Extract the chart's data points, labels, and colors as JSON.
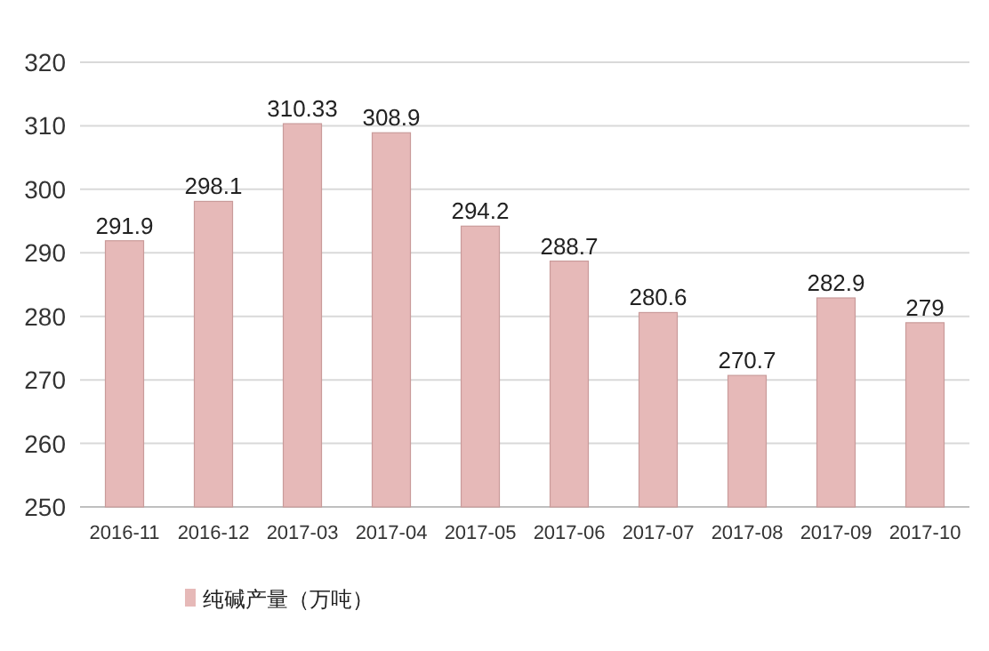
{
  "chart_data": {
    "type": "bar",
    "categories": [
      "2016-11",
      "2016-12",
      "2017-03",
      "2017-04",
      "2017-05",
      "2017-06",
      "2017-07",
      "2017-08",
      "2017-09",
      "2017-10"
    ],
    "series": [
      {
        "name": "纯碱产量（万吨）",
        "color": "#e6b9b8",
        "values": [
          291.9,
          298.1,
          310.33,
          308.9,
          294.2,
          288.7,
          280.6,
          270.7,
          282.9,
          279
        ]
      }
    ],
    "ylim": [
      250,
      320
    ],
    "yticks": [
      250,
      260,
      270,
      280,
      290,
      300,
      310,
      320
    ],
    "grid": "y",
    "legend": "bottom",
    "data_labels": true
  }
}
